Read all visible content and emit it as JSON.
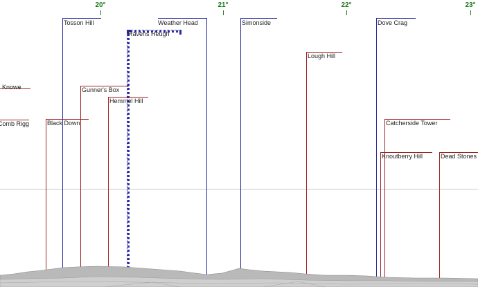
{
  "longitude_ticks": [
    {
      "label": "20°",
      "value": 20
    },
    {
      "label": "21°",
      "value": 21
    },
    {
      "label": "22°",
      "value": 22
    },
    {
      "label": "23°",
      "value": 23
    }
  ],
  "colors": {
    "far": "#2a2aa0",
    "near": "#a02020",
    "ticks": "#1a7a1a",
    "terrain": "#b4b4b4"
  },
  "peaks": [
    {
      "name": "Knowe",
      "color": "near",
      "style": "solid"
    },
    {
      "name": "Comb Rigg",
      "color": "near",
      "style": "solid"
    },
    {
      "name": "Tosson Hill",
      "color": "far",
      "style": "solid"
    },
    {
      "name": "Black Down",
      "color": "near",
      "style": "solid"
    },
    {
      "name": "Gunner's Box",
      "color": "near",
      "style": "solid"
    },
    {
      "name": "Ravens Heugh",
      "color": "far",
      "style": "dotted"
    },
    {
      "name": "Hemmel Hill",
      "color": "near",
      "style": "solid"
    },
    {
      "name": "Weather Head",
      "color": "far",
      "style": "solid"
    },
    {
      "name": "Simonside",
      "color": "far",
      "style": "solid"
    },
    {
      "name": "Lough Hill",
      "color": "near",
      "style": "solid"
    },
    {
      "name": "Dove Crag",
      "color": "far",
      "style": "solid"
    },
    {
      "name": "Catcherside Tower",
      "color": "near",
      "style": "solid"
    },
    {
      "name": "Knoutberry Hill",
      "color": "near",
      "style": "solid"
    },
    {
      "name": "Dead Stones",
      "color": "near",
      "style": "solid"
    }
  ]
}
